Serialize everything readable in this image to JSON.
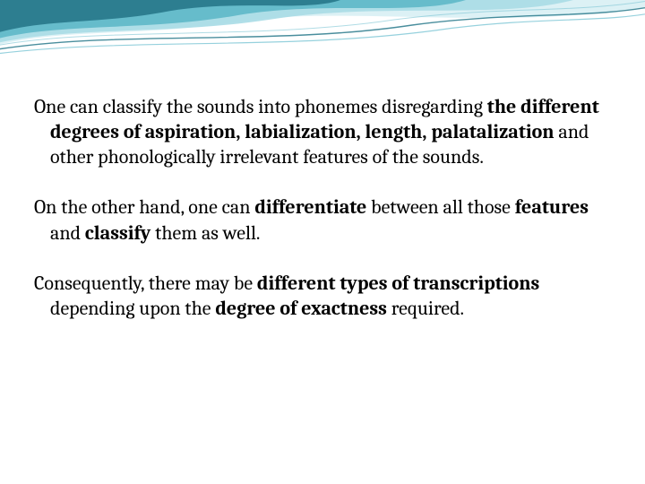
{
  "slide": {
    "background_color": "#ffffff",
    "text_color": "#000000",
    "font_family": "Cambria, Georgia, serif",
    "font_size_pt": 22,
    "wave": {
      "colors": {
        "dark_teal": "#2a7a8c",
        "mid_teal": "#5fb8c9",
        "light_teal": "#a8dce5",
        "pale_teal": "#d8f0f4",
        "line1": "#2a7a8c",
        "line2": "#7cc5d4"
      }
    },
    "paragraphs": [
      {
        "runs": [
          {
            "t": "One can classify the sounds into phonemes disregarding ",
            "b": false
          },
          {
            "t": "the different degrees of aspiration, labialization, length, palatalization",
            "b": true
          },
          {
            "t": " and other phonologically irrelevant features of the sounds.",
            "b": false
          }
        ]
      },
      {
        "runs": [
          {
            "t": "On the other hand, one can ",
            "b": false
          },
          {
            "t": "differentiate",
            "b": true
          },
          {
            "t": " between all those ",
            "b": false
          },
          {
            "t": "features",
            "b": true
          },
          {
            "t": " and ",
            "b": false
          },
          {
            "t": "classify",
            "b": true
          },
          {
            "t": " them as well.",
            "b": false
          }
        ]
      },
      {
        "runs": [
          {
            "t": "Consequently, there may be ",
            "b": false
          },
          {
            "t": "different types of transcriptions",
            "b": true
          },
          {
            "t": " depending upon the ",
            "b": false
          },
          {
            "t": "degree of exactness",
            "b": true
          },
          {
            "t": " required.",
            "b": false
          }
        ]
      }
    ]
  }
}
